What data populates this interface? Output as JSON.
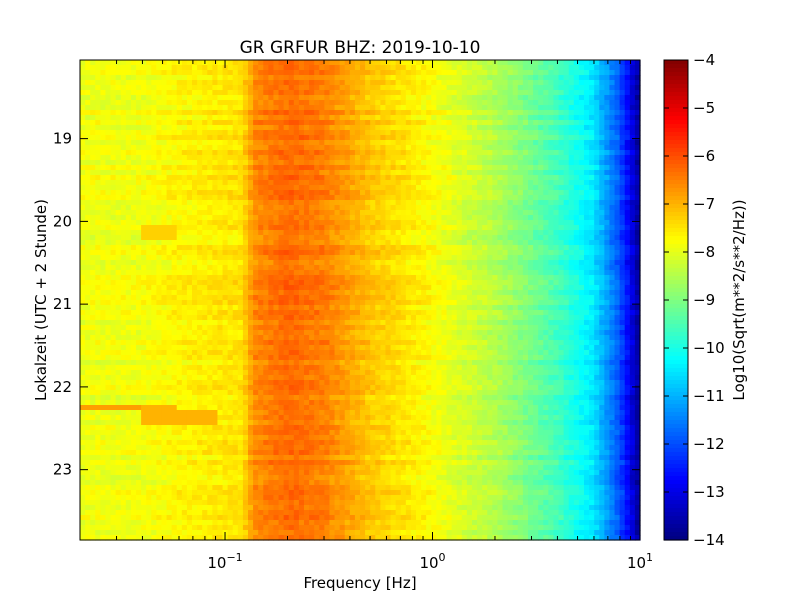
{
  "chart_data": {
    "type": "heatmap",
    "title": "GR GRFUR BHZ: 2019-10-10",
    "xlabel": "Frequency [Hz]",
    "ylabel": "Lokalzeit (UTC + 2 Stunde)",
    "x_scale": "log",
    "xlim": [
      0.02,
      10
    ],
    "x_ticks": [
      {
        "value": 0.1,
        "base": "10",
        "exp": "−1"
      },
      {
        "value": 1,
        "base": "10",
        "exp": "0"
      },
      {
        "value": 10,
        "base": "10",
        "exp": "1"
      }
    ],
    "y_scale": "linear",
    "ylim": [
      18.05,
      23.85
    ],
    "y_inverted": true,
    "y_ticks": [
      "19",
      "20",
      "21",
      "22",
      "23"
    ],
    "colorbar": {
      "label": "Log10(Sqrt(m**2/s**2/Hz))",
      "range": [
        -14,
        -4
      ],
      "colormap": "jet",
      "ticks": [
        "−4",
        "−5",
        "−6",
        "−7",
        "−8",
        "−9",
        "−10",
        "−11",
        "−12",
        "−13",
        "−14"
      ]
    },
    "spectrum_profile": [
      {
        "freq": 0.02,
        "value": -7.9
      },
      {
        "freq": 0.04,
        "value": -7.9
      },
      {
        "freq": 0.06,
        "value": -7.7
      },
      {
        "freq": 0.12,
        "value": -7.5
      },
      {
        "freq": 0.14,
        "value": -6.6
      },
      {
        "freq": 0.2,
        "value": -6.3
      },
      {
        "freq": 0.3,
        "value": -6.5
      },
      {
        "freq": 0.5,
        "value": -7.2
      },
      {
        "freq": 1.0,
        "value": -7.8
      },
      {
        "freq": 2.0,
        "value": -8.5
      },
      {
        "freq": 4.0,
        "value": -9.6
      },
      {
        "freq": 6.0,
        "value": -10.5
      },
      {
        "freq": 8.0,
        "value": -12.0
      },
      {
        "freq": 10.0,
        "value": -13.8
      }
    ],
    "anomalies": [
      {
        "time_start": 22.2,
        "time_end": 22.3,
        "freq_start": 0.02,
        "freq_end": 0.04,
        "value": -6.8
      },
      {
        "time_start": 22.2,
        "time_end": 22.45,
        "freq_start": 0.04,
        "freq_end": 0.06,
        "value": -7.0
      },
      {
        "time_start": 22.27,
        "time_end": 22.47,
        "freq_start": 0.06,
        "freq_end": 0.09,
        "value": -7.0
      },
      {
        "time_start": 20.05,
        "time_end": 20.25,
        "freq_start": 0.04,
        "freq_end": 0.06,
        "value": -7.3
      }
    ]
  }
}
